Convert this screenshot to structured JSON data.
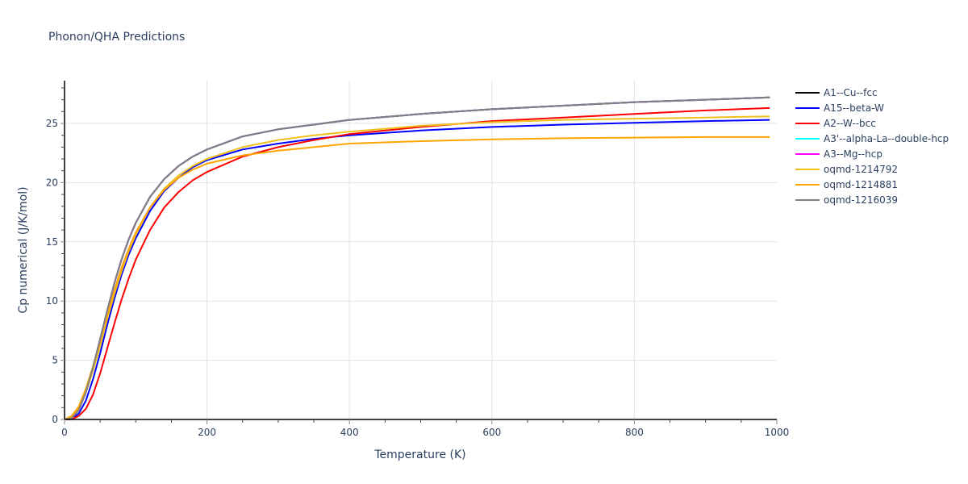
{
  "title": "Phonon/QHA Predictions",
  "chart_data": {
    "type": "line",
    "title": "Phonon/QHA Predictions",
    "xlabel": "Temperature (K)",
    "ylabel": "Cp numerical (J/K/mol)",
    "xlim": [
      0,
      1000
    ],
    "ylim": [
      0,
      28.6
    ],
    "x_ticks": [
      0,
      200,
      400,
      600,
      800,
      1000
    ],
    "y_ticks": [
      0,
      5,
      10,
      15,
      20,
      25
    ],
    "grid": true,
    "legend_position": "right",
    "x": [
      0,
      10,
      20,
      30,
      40,
      50,
      60,
      70,
      80,
      90,
      100,
      120,
      140,
      160,
      180,
      200,
      250,
      300,
      350,
      400,
      500,
      600,
      700,
      800,
      900,
      990
    ],
    "series": [
      {
        "name": "A1--Cu--fcc",
        "color": "#000000",
        "values": [
          0,
          0.1,
          0.8,
          2.3,
          4.4,
          6.8,
          9.2,
          11.5,
          13.5,
          15.2,
          16.6,
          18.8,
          20.3,
          21.4,
          22.2,
          22.8,
          23.9,
          24.5,
          24.9,
          25.3,
          25.8,
          26.2,
          26.5,
          26.8,
          27.0,
          27.2
        ]
      },
      {
        "name": "A15--beta-W",
        "color": "#0000ff",
        "values": [
          0,
          0.05,
          0.5,
          1.6,
          3.4,
          5.6,
          8.0,
          10.2,
          12.2,
          13.9,
          15.3,
          17.6,
          19.3,
          20.4,
          21.3,
          21.9,
          22.8,
          23.3,
          23.7,
          24.0,
          24.4,
          24.7,
          24.9,
          25.05,
          25.2,
          25.3
        ]
      },
      {
        "name": "A2--W--bcc",
        "color": "#ff0000",
        "values": [
          0,
          0.02,
          0.3,
          0.9,
          2.1,
          3.9,
          6.0,
          8.1,
          10.1,
          11.9,
          13.5,
          16.0,
          17.9,
          19.2,
          20.2,
          20.9,
          22.2,
          23.0,
          23.6,
          24.1,
          24.7,
          25.2,
          25.5,
          25.8,
          26.1,
          26.3
        ]
      },
      {
        "name": "A3'--alpha-La--double-hcp",
        "color": "#00ffff",
        "values": [
          0,
          0.1,
          0.8,
          2.3,
          4.4,
          6.8,
          9.2,
          11.5,
          13.5,
          15.2,
          16.6,
          18.8,
          20.3,
          21.4,
          22.2,
          22.8,
          23.9,
          24.5,
          24.9,
          25.3,
          25.8,
          26.2,
          26.5,
          26.8,
          27.0,
          27.2
        ]
      },
      {
        "name": "A3--Mg--hcp",
        "color": "#ff00ff",
        "values": [
          0,
          0.1,
          0.8,
          2.3,
          4.4,
          6.8,
          9.2,
          11.5,
          13.5,
          15.2,
          16.6,
          18.8,
          20.3,
          21.4,
          22.2,
          22.8,
          23.9,
          24.5,
          24.9,
          25.3,
          25.8,
          26.2,
          26.5,
          26.8,
          27.0,
          27.2
        ]
      },
      {
        "name": "oqmd-1214792",
        "color": "#f0c020",
        "values": [
          0,
          0.2,
          0.9,
          2.3,
          4.1,
          6.2,
          8.5,
          10.6,
          12.5,
          14.2,
          15.6,
          17.9,
          19.5,
          20.6,
          21.4,
          22.0,
          23.0,
          23.6,
          24.0,
          24.3,
          24.8,
          25.1,
          25.3,
          25.4,
          25.5,
          25.6
        ]
      },
      {
        "name": "oqmd-1214881",
        "color": "#ffa500",
        "values": [
          0,
          0.3,
          1.1,
          2.6,
          4.5,
          6.6,
          8.8,
          10.9,
          12.8,
          14.4,
          15.8,
          17.9,
          19.4,
          20.4,
          21.1,
          21.6,
          22.3,
          22.7,
          23.0,
          23.3,
          23.5,
          23.65,
          23.75,
          23.8,
          23.85,
          23.85
        ]
      },
      {
        "name": "oqmd-1216039",
        "color": "#808080",
        "values": [
          0,
          0.1,
          0.8,
          2.3,
          4.4,
          6.8,
          9.2,
          11.5,
          13.5,
          15.2,
          16.6,
          18.8,
          20.3,
          21.4,
          22.2,
          22.8,
          23.9,
          24.5,
          24.9,
          25.3,
          25.8,
          26.2,
          26.5,
          26.8,
          27.0,
          27.2
        ]
      }
    ]
  }
}
